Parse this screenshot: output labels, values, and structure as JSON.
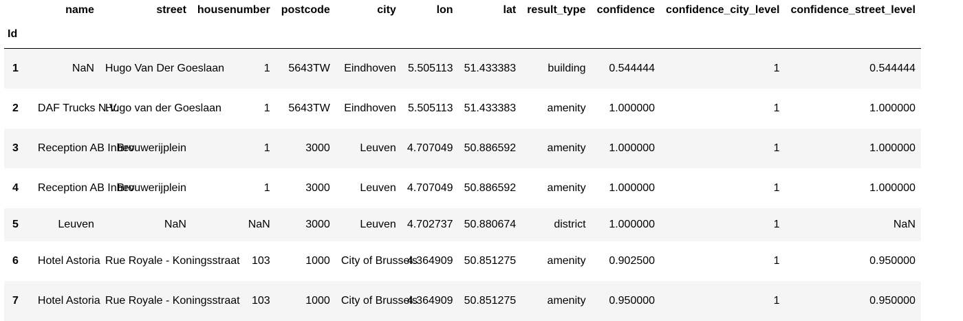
{
  "table": {
    "index_name": "Id",
    "columns": [
      "name",
      "street",
      "housenumber",
      "postcode",
      "city",
      "lon",
      "lat",
      "result_type",
      "confidence",
      "confidence_city_level",
      "confidence_street_level"
    ],
    "rows": [
      {
        "id": "1",
        "name": "NaN",
        "street": "Hugo Van Der Goeslaan",
        "housenumber": "1",
        "postcode": "5643TW",
        "city": "Eindhoven",
        "lon": "5.505113",
        "lat": "51.433383",
        "result_type": "building",
        "confidence": "0.544444",
        "confidence_city_level": "1",
        "confidence_street_level": "0.544444"
      },
      {
        "id": "2",
        "name": "DAF Trucks N.V.",
        "street": "Hugo van der Goeslaan",
        "housenumber": "1",
        "postcode": "5643TW",
        "city": "Eindhoven",
        "lon": "5.505113",
        "lat": "51.433383",
        "result_type": "amenity",
        "confidence": "1.000000",
        "confidence_city_level": "1",
        "confidence_street_level": "1.000000"
      },
      {
        "id": "3",
        "name": "Reception AB Inbev",
        "street": "Brouwerijplein",
        "housenumber": "1",
        "postcode": "3000",
        "city": "Leuven",
        "lon": "4.707049",
        "lat": "50.886592",
        "result_type": "amenity",
        "confidence": "1.000000",
        "confidence_city_level": "1",
        "confidence_street_level": "1.000000"
      },
      {
        "id": "4",
        "name": "Reception AB Inbev",
        "street": "Brouwerijplein",
        "housenumber": "1",
        "postcode": "3000",
        "city": "Leuven",
        "lon": "4.707049",
        "lat": "50.886592",
        "result_type": "amenity",
        "confidence": "1.000000",
        "confidence_city_level": "1",
        "confidence_street_level": "1.000000"
      },
      {
        "id": "5",
        "name": "Leuven",
        "street": "NaN",
        "housenumber": "NaN",
        "postcode": "3000",
        "city": "Leuven",
        "lon": "4.702737",
        "lat": "50.880674",
        "result_type": "district",
        "confidence": "1.000000",
        "confidence_city_level": "1",
        "confidence_street_level": "NaN"
      },
      {
        "id": "6",
        "name": "Hotel Astoria",
        "street": "Rue Royale - Koningsstraat",
        "housenumber": "103",
        "postcode": "1000",
        "city": "City of Brussels",
        "lon": "4.364909",
        "lat": "50.851275",
        "result_type": "amenity",
        "confidence": "0.902500",
        "confidence_city_level": "1",
        "confidence_street_level": "0.950000"
      },
      {
        "id": "7",
        "name": "Hotel Astoria",
        "street": "Rue Royale - Koningsstraat",
        "housenumber": "103",
        "postcode": "1000",
        "city": "City of Brussels",
        "lon": "4.364909",
        "lat": "50.851275",
        "result_type": "amenity",
        "confidence": "0.950000",
        "confidence_city_level": "1",
        "confidence_street_level": "0.950000"
      }
    ]
  }
}
